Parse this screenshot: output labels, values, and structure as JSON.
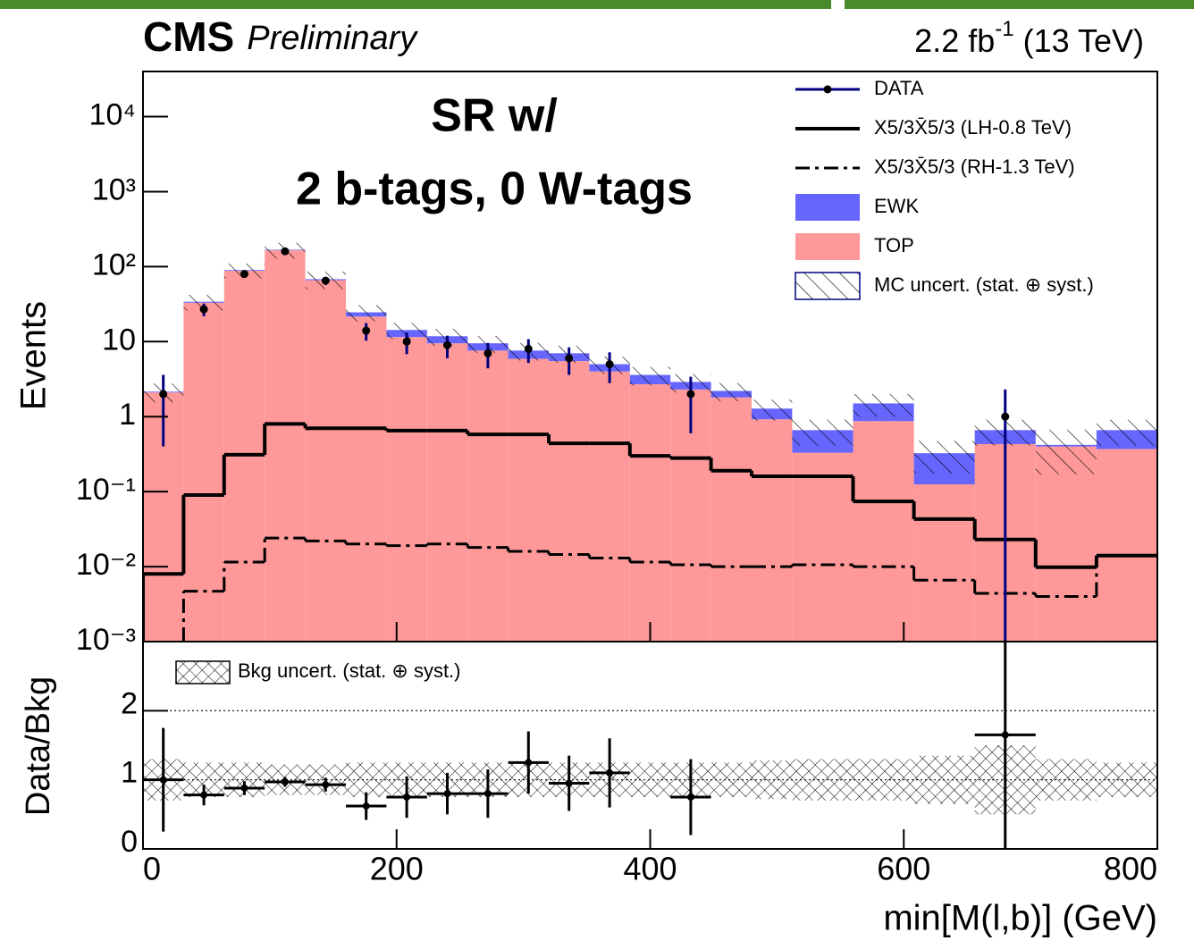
{
  "chart_data": {
    "type": "histogram",
    "title": {
      "experiment": "CMS",
      "status": "Preliminary"
    },
    "luminosity": {
      "text": "2.2 fb",
      "sup": "-1",
      "suffix": "(13 TeV)"
    },
    "annotation": [
      "SR w/",
      "2 b-tags, 0 W-tags"
    ],
    "xlabel": "min[M(l,b)] (GeV)",
    "ylabel": "Events",
    "log_y": true,
    "legend_position": "upper right",
    "xlim": [
      0,
      800
    ],
    "xticks": [
      0,
      200,
      400,
      600,
      800
    ],
    "ylim": [
      0.001,
      40000
    ],
    "yticks": [
      {
        "value": 0.001,
        "label": "10⁻³"
      },
      {
        "value": 0.01,
        "label": "10⁻²"
      },
      {
        "value": 0.1,
        "label": "10⁻¹"
      },
      1,
      10,
      {
        "value": 100,
        "label": "10²"
      },
      {
        "value": 1000,
        "label": "10³"
      },
      {
        "value": 10000,
        "label": "10⁴"
      }
    ],
    "bins": [
      0,
      32,
      64,
      96,
      128,
      160,
      192,
      224,
      256,
      288,
      320,
      352,
      384,
      416,
      448,
      480,
      512,
      560,
      608,
      656,
      704,
      752,
      800
    ],
    "series": [
      {
        "name": "TOP",
        "color": "#ff9999",
        "stack": true,
        "values": [
          2.1,
          33,
          88,
          165,
          66,
          21.6,
          11.5,
          9.5,
          7.6,
          5.9,
          5.5,
          4.0,
          2.7,
          2.3,
          1.8,
          0.92,
          0.33,
          0.87,
          0.125,
          0.43,
          0.4,
          0.37
        ]
      },
      {
        "name": "EWK",
        "color": "#6666ff",
        "stack": true,
        "values": [
          0.05,
          1,
          2,
          3,
          2,
          3,
          2.8,
          2.3,
          1.9,
          1.7,
          1.5,
          1.0,
          0.9,
          0.6,
          0.4,
          0.36,
          0.33,
          0.63,
          0.2,
          0.23,
          0.02,
          0.29
        ]
      },
      {
        "name": "X5/3X̄5/3 (LH-0.8 TeV)",
        "color": "#000000",
        "style": "solid",
        "values": [
          0.008,
          0.09,
          0.31,
          0.8,
          0.7,
          0.7,
          0.65,
          0.65,
          0.58,
          0.58,
          0.44,
          0.44,
          0.3,
          0.28,
          0.19,
          0.16,
          0.16,
          0.074,
          0.043,
          0.023,
          0.0098,
          0.014
        ]
      },
      {
        "name": "X5/3X̄5/3 (RH-1.3 TeV)",
        "color": "#000000",
        "style": "dashdot",
        "values": [
          null,
          0.0047,
          0.0115,
          0.024,
          0.022,
          0.02,
          0.019,
          0.02,
          0.018,
          0.016,
          0.0145,
          0.013,
          0.0115,
          0.0106,
          0.01,
          0.01,
          0.0106,
          0.01,
          0.0066,
          0.0044,
          0.004,
          0.014
        ]
      }
    ],
    "uncertainty": {
      "name": "MC uncert. (stat. ⊕ syst.)",
      "values": [
        0.6,
        8,
        20,
        40,
        18,
        6,
        3.5,
        3,
        2.4,
        2,
        1.8,
        1.3,
        1,
        0.8,
        0.6,
        0.4,
        0.25,
        0.5,
        0.15,
        0.25,
        0.25,
        0.25
      ]
    },
    "data": {
      "name": "DATA",
      "color": "#000080",
      "values": [
        2,
        27,
        80,
        160,
        65,
        14,
        10,
        9,
        7,
        8,
        6,
        5,
        null,
        2,
        null,
        null,
        null,
        null,
        null,
        1,
        null,
        null
      ],
      "errors": [
        1.6,
        5.2,
        9,
        13,
        8,
        3.7,
        3.2,
        3,
        2.6,
        2.8,
        2.4,
        2.2,
        null,
        1.4,
        null,
        null,
        null,
        null,
        null,
        1.3,
        null,
        null
      ]
    },
    "ratio": {
      "ylabel": "Data/Bkg",
      "ylim": [
        0,
        3
      ],
      "yticks": [
        0,
        1,
        2
      ],
      "values": [
        1.0,
        0.78,
        0.88,
        0.97,
        0.93,
        0.62,
        0.75,
        0.8,
        0.8,
        1.25,
        0.95,
        1.1,
        null,
        0.75,
        null,
        null,
        null,
        null,
        null,
        1.65,
        null,
        null
      ],
      "errors": [
        0.75,
        0.15,
        0.1,
        0.07,
        0.1,
        0.2,
        0.3,
        0.3,
        0.35,
        0.45,
        0.4,
        0.5,
        null,
        0.55,
        null,
        null,
        null,
        null,
        null,
        1.65,
        null,
        null
      ],
      "band_name": "Bkg uncert. (stat. ⊕ syst.)",
      "band_values": [
        0.3,
        0.25,
        0.25,
        0.22,
        0.22,
        0.25,
        0.25,
        0.25,
        0.25,
        0.25,
        0.25,
        0.25,
        0.25,
        0.25,
        0.25,
        0.28,
        0.3,
        0.3,
        0.35,
        0.5,
        0.3,
        0.25
      ]
    }
  }
}
